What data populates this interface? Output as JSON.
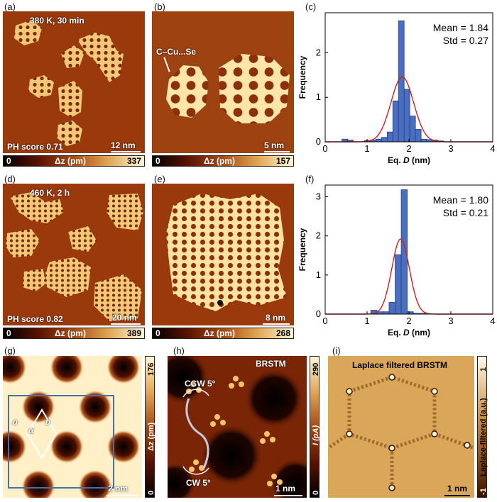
{
  "panels": {
    "a": {
      "letter": "(a)",
      "condition": "380 K, 30 min",
      "ph_score": "PH score 0.71",
      "scale": "12 nm",
      "cbar": {
        "min": "0",
        "label": "Δz (pm)",
        "max": "337"
      }
    },
    "b": {
      "letter": "(b)",
      "bond_label": "C–Cu...Se",
      "scale": "5 nm",
      "cbar": {
        "min": "0",
        "label": "Δz (pm)",
        "max": "157"
      }
    },
    "c": {
      "letter": "(c)"
    },
    "d": {
      "letter": "(d)",
      "condition": "460 K, 2 h",
      "ph_score": "PH score 0.82",
      "scale": "20 nm",
      "cbar": {
        "min": "0",
        "label": "Δz (pm)",
        "max": "389"
      }
    },
    "e": {
      "letter": "(e)",
      "scale": "8 nm",
      "cbar": {
        "min": "0",
        "label": "Δz (pm)",
        "max": "268"
      }
    },
    "f": {
      "letter": "(f)"
    },
    "g": {
      "letter": "(g)",
      "lattice_a": "a",
      "lattice_alpha": "α",
      "lattice_b": "b",
      "scale": "2 nm",
      "cbar": {
        "min": "0",
        "label": "Δz (pm)",
        "max": "176"
      }
    },
    "h": {
      "letter": "(h)",
      "title": "BRSTM",
      "ccw": "CCW 5°",
      "cw": "CW 5°",
      "scale": "1 nm",
      "cbar": {
        "min": "0",
        "label": "I (pA)",
        "max": "290"
      }
    },
    "i": {
      "letter": "(i)",
      "title": "Laplace filtered BRSTM",
      "scale": "1 nm",
      "cbar": {
        "min": "-1",
        "label": "Laplace-filtered (a.u.)",
        "max": "1"
      }
    }
  },
  "chart_data": [
    {
      "type": "bar",
      "panel": "c",
      "xlabel": "Eq. D (nm)",
      "ylabel": "Frequency",
      "xlim": [
        0,
        4
      ],
      "ylim": [
        0,
        2.9
      ],
      "xticks": [
        0,
        1,
        2,
        3,
        4
      ],
      "yticks": [
        0,
        1,
        2
      ],
      "stats": {
        "mean_label": "Mean = 1.84",
        "std_label": "Std = 0.27"
      },
      "bin_width": 0.135,
      "bins": [
        {
          "x": 0.4,
          "y": 0.06
        },
        {
          "x": 0.535,
          "y": 0.04
        },
        {
          "x": 0.94,
          "y": 0.03
        },
        {
          "x": 1.075,
          "y": 0.04
        },
        {
          "x": 1.21,
          "y": 0.06
        },
        {
          "x": 1.345,
          "y": 0.1
        },
        {
          "x": 1.48,
          "y": 0.22
        },
        {
          "x": 1.615,
          "y": 0.92
        },
        {
          "x": 1.75,
          "y": 2.72
        },
        {
          "x": 1.885,
          "y": 1.18
        },
        {
          "x": 2.02,
          "y": 0.58
        },
        {
          "x": 2.155,
          "y": 0.28
        },
        {
          "x": 2.29,
          "y": 0.06
        },
        {
          "x": 2.425,
          "y": 0.05
        },
        {
          "x": 2.56,
          "y": 0.04
        },
        {
          "x": 2.695,
          "y": 0.02
        }
      ],
      "fit": {
        "mean": 1.84,
        "std": 0.27,
        "peak": 1.46
      }
    },
    {
      "type": "bar",
      "panel": "f",
      "xlabel": "Eq. D (nm)",
      "ylabel": "Frequency",
      "xlim": [
        0,
        4
      ],
      "ylim": [
        0,
        3.3
      ],
      "xticks": [
        0,
        1,
        2,
        3,
        4
      ],
      "yticks": [
        0,
        1,
        2,
        3
      ],
      "stats": {
        "mean_label": "Mean = 1.80",
        "std_label": "Std = 0.21"
      },
      "bin_width": 0.145,
      "bins": [
        {
          "x": 1.09,
          "y": 0.1
        },
        {
          "x": 1.235,
          "y": 0.06
        },
        {
          "x": 1.38,
          "y": 0.06
        },
        {
          "x": 1.525,
          "y": 0.3
        },
        {
          "x": 1.67,
          "y": 1.52
        },
        {
          "x": 1.815,
          "y": 3.18
        },
        {
          "x": 1.96,
          "y": 0.06
        },
        {
          "x": 2.105,
          "y": 0.02
        },
        {
          "x": 2.25,
          "y": 0.02
        }
      ],
      "fit": {
        "mean": 1.8,
        "std": 0.21,
        "peak": 1.92
      }
    }
  ]
}
